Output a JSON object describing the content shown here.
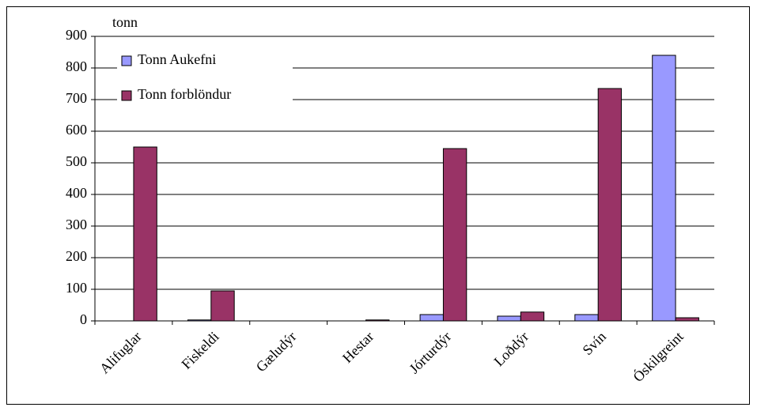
{
  "chart_data": {
    "type": "bar",
    "y_label": "tonn",
    "categories": [
      "Alifuglar",
      "Fiskeldi",
      "Gæludýr",
      "Hestar",
      "Jórturdýr",
      "Loðdýr",
      "Svín",
      "Óskilgreint"
    ],
    "series": [
      {
        "name": "Tonn Aukefni",
        "color": "#9999ff",
        "values": [
          0,
          3,
          0,
          0,
          20,
          15,
          20,
          840
        ]
      },
      {
        "name": "Tonn forblöndur",
        "color": "#993366",
        "values": [
          550,
          95,
          0,
          3,
          545,
          28,
          735,
          10
        ]
      }
    ],
    "ylim": [
      0,
      900
    ],
    "yticks": [
      0,
      100,
      200,
      300,
      400,
      500,
      600,
      700,
      800,
      900
    ],
    "grid": true,
    "legend": "top-left"
  }
}
